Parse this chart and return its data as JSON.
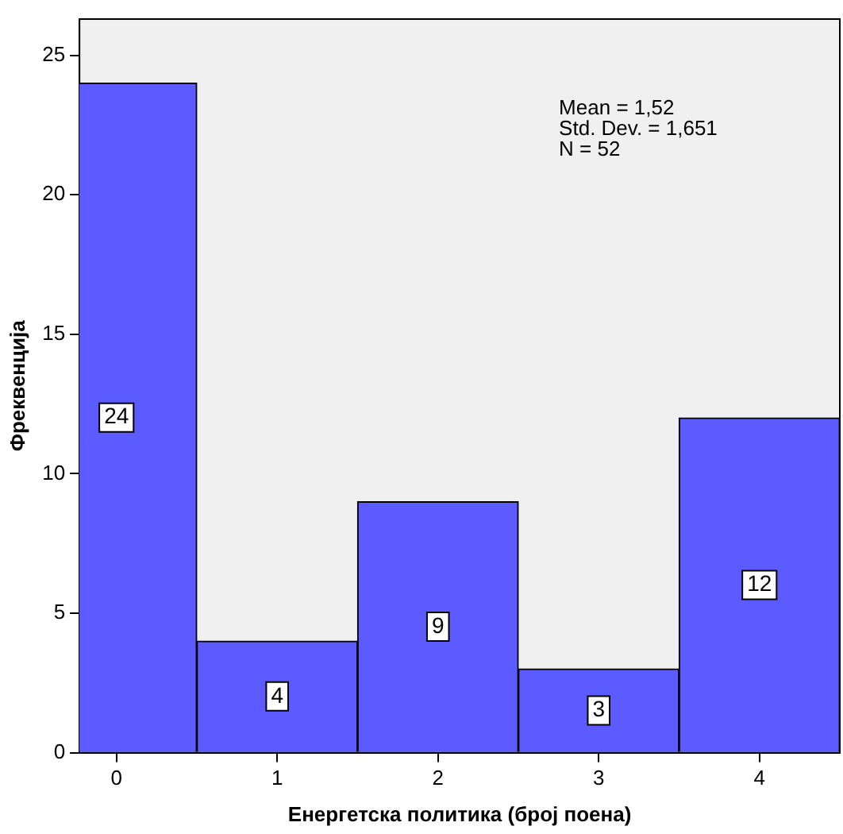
{
  "chart_data": {
    "type": "histogram",
    "xlabel": "Енергетска политика (број поена)",
    "ylabel": "Фреквенција",
    "bins": [
      -0.5,
      0.5,
      1.5,
      2.5,
      3.5,
      4.5
    ],
    "values": [
      24,
      4,
      9,
      3,
      12
    ],
    "color": "#5b5bff",
    "xlim": [
      -0.23,
      4.5
    ],
    "xticks": [
      0,
      1,
      2,
      3,
      4
    ],
    "ylim": [
      0,
      26.3
    ],
    "yticks": [
      0,
      5,
      10,
      15,
      20,
      25
    ],
    "grid": false,
    "legend": false,
    "data_labels": true,
    "annotations": [
      "Mean = 1,52",
      "Std. Dev. = 1,651",
      "N = 52"
    ]
  }
}
